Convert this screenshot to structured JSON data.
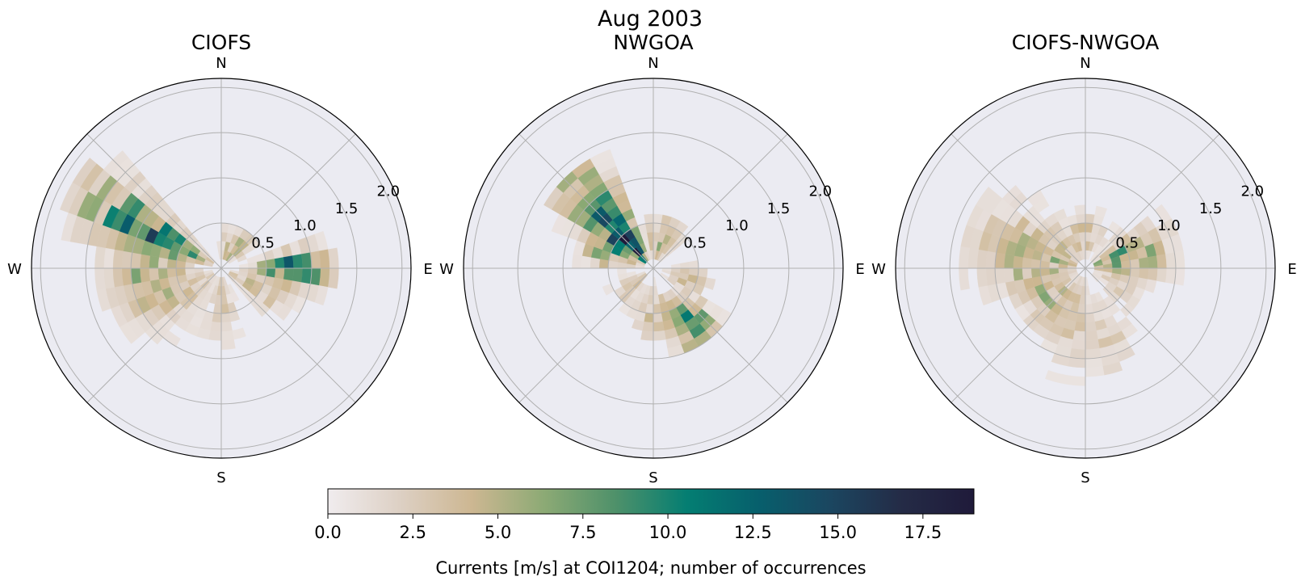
{
  "figure_title": "Aug 2003",
  "chart_data": [
    {
      "type": "polar-heatmap",
      "title": "CIOFS",
      "compass_labels": {
        "north": "N",
        "east": "E",
        "south": "S",
        "west": "W"
      },
      "radial_ticks": [
        0.5,
        1.0,
        1.5,
        2.0
      ],
      "radial_tick_labels": [
        "0.5",
        "1.0",
        "1.5",
        "2.0"
      ],
      "rlim": [
        0,
        2.1
      ],
      "dir_bin_deg": 10,
      "speed_bin": 0.1,
      "lobes": [
        {
          "center_deg": 298,
          "spread_deg": 14,
          "r0": 0.1,
          "r1": 1.95,
          "peak_r": 0.9,
          "peak": 12.0,
          "seed": 3
        },
        {
          "center_deg": 270,
          "spread_deg": 28,
          "r0": 0.1,
          "r1": 1.4,
          "peak_r": 0.8,
          "peak": 6.0,
          "seed": 5
        },
        {
          "center_deg": 90,
          "spread_deg": 12,
          "r0": 0.1,
          "r1": 1.3,
          "peak_r": 0.8,
          "peak": 13.5,
          "seed": 7
        },
        {
          "center_deg": 118,
          "spread_deg": 18,
          "r0": 0.1,
          "r1": 1.0,
          "peak_r": 0.4,
          "peak": 4.5,
          "seed": 9
        },
        {
          "center_deg": 180,
          "spread_deg": 22,
          "r0": 0.1,
          "r1": 0.95,
          "peak_r": 0.4,
          "peak": 3.2,
          "seed": 11
        },
        {
          "center_deg": 235,
          "spread_deg": 24,
          "r0": 0.1,
          "r1": 1.25,
          "peak_r": 0.5,
          "peak": 3.5,
          "seed": 13
        },
        {
          "center_deg": 30,
          "spread_deg": 30,
          "r0": 0.1,
          "r1": 0.5,
          "peak_r": 0.25,
          "peak": 5.5,
          "seed": 15
        }
      ]
    },
    {
      "type": "polar-heatmap",
      "title": "NWGOA",
      "compass_labels": {
        "north": "N",
        "east": "E",
        "south": "S",
        "west": "W"
      },
      "radial_ticks": [
        0.5,
        1.0,
        1.5,
        2.0
      ],
      "radial_tick_labels": [
        "0.5",
        "1.0",
        "1.5",
        "2.0"
      ],
      "rlim": [
        0,
        2.1
      ],
      "dir_bin_deg": 10,
      "speed_bin": 0.1,
      "lobes": [
        {
          "center_deg": 318,
          "spread_deg": 16,
          "r0": 0.1,
          "r1": 1.45,
          "peak_r": 0.45,
          "peak": 19.0,
          "seed": 21
        },
        {
          "center_deg": 290,
          "spread_deg": 18,
          "r0": 0.1,
          "r1": 0.9,
          "peak_r": 0.5,
          "peak": 8.0,
          "seed": 23
        },
        {
          "center_deg": 145,
          "spread_deg": 16,
          "r0": 0.1,
          "r1": 1.0,
          "peak_r": 0.75,
          "peak": 11.0,
          "seed": 25
        },
        {
          "center_deg": 175,
          "spread_deg": 24,
          "r0": 0.1,
          "r1": 0.85,
          "peak_r": 0.5,
          "peak": 5.0,
          "seed": 27
        },
        {
          "center_deg": 110,
          "spread_deg": 24,
          "r0": 0.1,
          "r1": 0.65,
          "peak_r": 0.4,
          "peak": 4.0,
          "seed": 29
        },
        {
          "center_deg": 15,
          "spread_deg": 26,
          "r0": 0.1,
          "r1": 0.6,
          "peak_r": 0.3,
          "peak": 6.5,
          "seed": 31
        },
        {
          "center_deg": 230,
          "spread_deg": 22,
          "r0": 0.1,
          "r1": 0.55,
          "peak_r": 0.3,
          "peak": 3.5,
          "seed": 33
        }
      ]
    },
    {
      "type": "polar-heatmap",
      "title": "CIOFS-NWGOA",
      "compass_labels": {
        "north": "N",
        "east": "E",
        "south": "S",
        "west": "W"
      },
      "radial_ticks": [
        0.5,
        1.0,
        1.5,
        2.0
      ],
      "radial_tick_labels": [
        "0.5",
        "1.0",
        "1.5",
        "2.0"
      ],
      "rlim": [
        0,
        2.1
      ],
      "dir_bin_deg": 10,
      "speed_bin": 0.1,
      "lobes": [
        {
          "center_deg": 285,
          "spread_deg": 30,
          "r0": 0.1,
          "r1": 1.45,
          "peak_r": 0.6,
          "peak": 6.5,
          "seed": 41
        },
        {
          "center_deg": 75,
          "spread_deg": 22,
          "r0": 0.1,
          "r1": 1.05,
          "peak_r": 0.4,
          "peak": 9.5,
          "seed": 43
        },
        {
          "center_deg": 160,
          "spread_deg": 14,
          "r0": 0.2,
          "r1": 1.35,
          "peak_r": 0.8,
          "peak": 3.0,
          "seed": 45
        },
        {
          "center_deg": 190,
          "spread_deg": 18,
          "r0": 0.1,
          "r1": 1.3,
          "peak_r": 0.6,
          "peak": 3.0,
          "seed": 47
        },
        {
          "center_deg": 230,
          "spread_deg": 30,
          "r0": 0.1,
          "r1": 0.95,
          "peak_r": 0.5,
          "peak": 5.5,
          "seed": 49
        },
        {
          "center_deg": 350,
          "spread_deg": 40,
          "r0": 0.1,
          "r1": 0.65,
          "peak_r": 0.35,
          "peak": 4.5,
          "seed": 51
        },
        {
          "center_deg": 120,
          "spread_deg": 22,
          "r0": 0.1,
          "r1": 0.8,
          "peak_r": 0.4,
          "peak": 3.0,
          "seed": 53
        }
      ]
    }
  ],
  "colorbar": {
    "range": [
      0,
      19
    ],
    "ticks": [
      0.0,
      2.5,
      5.0,
      7.5,
      10.0,
      12.5,
      15.0,
      17.5
    ],
    "tick_labels": [
      "0.0",
      "2.5",
      "5.0",
      "7.5",
      "10.0",
      "12.5",
      "15.0",
      "17.5"
    ],
    "label": "Currents [m/s] at COI1204; number of occurrences",
    "stops": [
      "#f0ecee",
      "#ddd0c4",
      "#cdb792",
      "#8daa75",
      "#4f916a",
      "#047e72",
      "#075f6c",
      "#1b4660",
      "#242b46",
      "#1f1a3a"
    ]
  },
  "colors": {
    "axes_bg": "#ebebf2",
    "grid": "#b0b0b0",
    "spine": "#000000"
  }
}
